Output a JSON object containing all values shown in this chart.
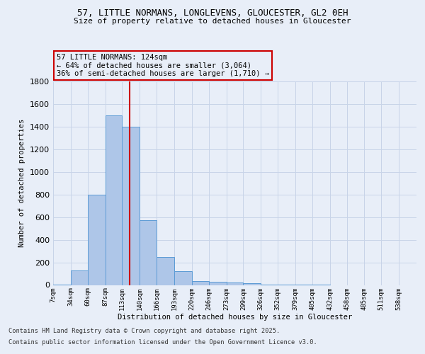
{
  "title_line1": "57, LITTLE NORMANS, LONGLEVENS, GLOUCESTER, GL2 0EH",
  "title_line2": "Size of property relative to detached houses in Gloucester",
  "xlabel": "Distribution of detached houses by size in Gloucester",
  "ylabel": "Number of detached properties",
  "bin_labels": [
    "7sqm",
    "34sqm",
    "60sqm",
    "87sqm",
    "113sqm",
    "140sqm",
    "166sqm",
    "193sqm",
    "220sqm",
    "246sqm",
    "273sqm",
    "299sqm",
    "326sqm",
    "352sqm",
    "379sqm",
    "405sqm",
    "432sqm",
    "458sqm",
    "485sqm",
    "511sqm",
    "538sqm"
  ],
  "bin_edges": [
    7,
    34,
    60,
    87,
    113,
    140,
    166,
    193,
    220,
    246,
    273,
    299,
    326,
    352,
    379,
    405,
    432,
    458,
    485,
    511,
    538,
    565
  ],
  "bar_heights": [
    5,
    130,
    800,
    1500,
    1400,
    575,
    250,
    120,
    35,
    30,
    20,
    15,
    2,
    2,
    1,
    1,
    0,
    0,
    0,
    0,
    0
  ],
  "bar_color": "#aec6e8",
  "bar_edge_color": "#5b9bd5",
  "property_size": 124,
  "red_line_color": "#cc0000",
  "annotation_text": "57 LITTLE NORMANS: 124sqm\n← 64% of detached houses are smaller (3,064)\n36% of semi-detached houses are larger (1,710) →",
  "ylim": [
    0,
    1800
  ],
  "yticks": [
    0,
    200,
    400,
    600,
    800,
    1000,
    1200,
    1400,
    1600,
    1800
  ],
  "footer_line1": "Contains HM Land Registry data © Crown copyright and database right 2025.",
  "footer_line2": "Contains public sector information licensed under the Open Government Licence v3.0.",
  "bg_color": "#e8eef8",
  "grid_color": "#c8d4e8"
}
